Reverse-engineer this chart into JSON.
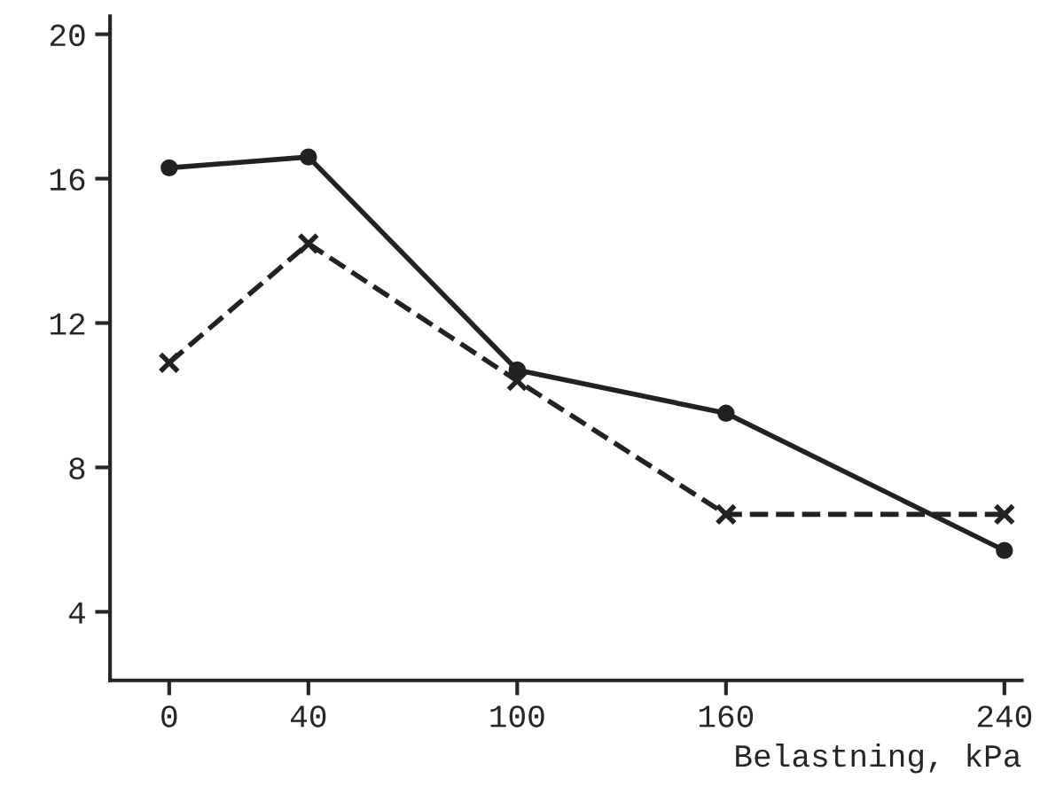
{
  "chart_data": {
    "type": "line",
    "xlabel": "Belastning, kPa",
    "x": [
      0,
      40,
      100,
      160,
      240
    ],
    "series": [
      {
        "color": "#222222",
        "marker": "circle",
        "line_style": "solid",
        "values": [
          16.3,
          16.6,
          10.7,
          9.5,
          5.7
        ]
      },
      {
        "color": "#222222",
        "marker": "cross",
        "line_style": "dashed",
        "values": [
          10.9,
          14.2,
          10.4,
          6.7,
          6.7
        ]
      }
    ],
    "xlim": [
      -17,
      245
    ],
    "ylim": [
      2.1,
      20.5
    ],
    "xticks": [
      0,
      40,
      100,
      160,
      240
    ],
    "yticks": [
      4,
      8,
      12,
      16,
      20
    ],
    "grid": false,
    "legend": false
  }
}
